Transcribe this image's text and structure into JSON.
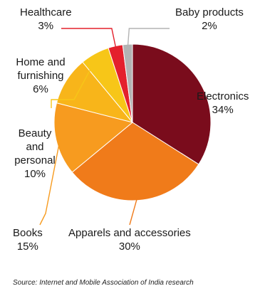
{
  "chart_data": {
    "type": "pie",
    "slices": [
      {
        "label": "Electronics",
        "value": 34,
        "value_label": "34%",
        "color": "#7a0c1c"
      },
      {
        "label": "Apparels and accessories",
        "value": 30,
        "value_label": "30%",
        "color": "#f07b1a"
      },
      {
        "label": "Books",
        "value": 15,
        "value_label": "15%",
        "color": "#f79b1f"
      },
      {
        "label": "Beauty and personal",
        "value": 10,
        "value_label": "10%",
        "color": "#f8b51a"
      },
      {
        "label": "Home and furnishing",
        "value": 6,
        "value_label": "6%",
        "color": "#f7c618"
      },
      {
        "label": "Healthcare",
        "value": 3,
        "value_label": "3%",
        "color": "#e4202c"
      },
      {
        "label": "Baby products",
        "value": 2,
        "value_label": "2%",
        "color": "#b3b3b3"
      }
    ],
    "source": "Source: Internet and Mobile Association of India research"
  }
}
